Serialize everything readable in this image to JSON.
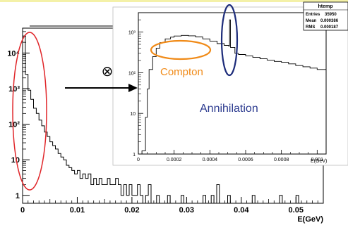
{
  "chart_data": [
    {
      "type": "histogram",
      "role": "main",
      "xlabel": "E(GeV)",
      "ylabel": "",
      "log_y": true,
      "xlim": [
        0,
        0.055
      ],
      "ylim": [
        0.6,
        50000
      ],
      "x_ticks": [
        {
          "value": 0,
          "label": "0"
        },
        {
          "value": 0.01,
          "label": "0.01"
        },
        {
          "value": 0.02,
          "label": "0.02"
        },
        {
          "value": 0.03,
          "label": "0.03"
        },
        {
          "value": 0.04,
          "label": "0.04"
        },
        {
          "value": 0.05,
          "label": "0.05"
        }
      ],
      "y_ticks": [
        {
          "value": 1,
          "label": "1"
        },
        {
          "value": 10,
          "label": "10"
        },
        {
          "value": 100,
          "label": "10²"
        },
        {
          "value": 1000,
          "label": "10³"
        },
        {
          "value": 10000,
          "label": "10⁴"
        }
      ],
      "bins": [
        {
          "x": 0.0,
          "y": 30000
        },
        {
          "x": 0.0005,
          "y": 2500
        },
        {
          "x": 0.001,
          "y": 900
        },
        {
          "x": 0.0015,
          "y": 500
        },
        {
          "x": 0.002,
          "y": 280
        },
        {
          "x": 0.0025,
          "y": 200
        },
        {
          "x": 0.003,
          "y": 130
        },
        {
          "x": 0.0035,
          "y": 90
        },
        {
          "x": 0.004,
          "y": 60
        },
        {
          "x": 0.0045,
          "y": 45
        },
        {
          "x": 0.005,
          "y": 32
        },
        {
          "x": 0.0055,
          "y": 25
        },
        {
          "x": 0.006,
          "y": 20
        },
        {
          "x": 0.0065,
          "y": 15
        },
        {
          "x": 0.007,
          "y": 12
        },
        {
          "x": 0.0075,
          "y": 10
        },
        {
          "x": 0.008,
          "y": 7
        },
        {
          "x": 0.0085,
          "y": 6
        },
        {
          "x": 0.009,
          "y": 5
        },
        {
          "x": 0.0095,
          "y": 4
        },
        {
          "x": 0.01,
          "y": 5
        },
        {
          "x": 0.0105,
          "y": 3
        },
        {
          "x": 0.011,
          "y": 4
        },
        {
          "x": 0.0115,
          "y": 3
        },
        {
          "x": 0.012,
          "y": 4
        },
        {
          "x": 0.0125,
          "y": 2
        },
        {
          "x": 0.013,
          "y": 3
        },
        {
          "x": 0.0135,
          "y": 2
        },
        {
          "x": 0.014,
          "y": 3
        },
        {
          "x": 0.0145,
          "y": 2
        },
        {
          "x": 0.015,
          "y": 2
        },
        {
          "x": 0.0155,
          "y": 3
        },
        {
          "x": 0.016,
          "y": 2
        },
        {
          "x": 0.0165,
          "y": 2
        },
        {
          "x": 0.017,
          "y": 3
        },
        {
          "x": 0.0175,
          "y": 2
        },
        {
          "x": 0.018,
          "y": 1
        },
        {
          "x": 0.0185,
          "y": 2
        },
        {
          "x": 0.019,
          "y": 1
        },
        {
          "x": 0.0195,
          "y": 2
        },
        {
          "x": 0.02,
          "y": 1
        },
        {
          "x": 0.0205,
          "y": 1
        },
        {
          "x": 0.021,
          "y": 2
        },
        {
          "x": 0.0215,
          "y": 1
        },
        {
          "x": 0.0225,
          "y": 1
        },
        {
          "x": 0.023,
          "y": 2
        },
        {
          "x": 0.0245,
          "y": 1
        },
        {
          "x": 0.0265,
          "y": 1
        },
        {
          "x": 0.029,
          "y": 1
        },
        {
          "x": 0.033,
          "y": 1
        },
        {
          "x": 0.0345,
          "y": 1
        },
        {
          "x": 0.0355,
          "y": 2
        },
        {
          "x": 0.0375,
          "y": 1
        },
        {
          "x": 0.042,
          "y": 1
        },
        {
          "x": 0.047,
          "y": 1
        },
        {
          "x": 0.05,
          "y": 1
        }
      ],
      "bin_width": 0.0005,
      "annotation_labels": [],
      "colors": {
        "ellipse": "#e0262a",
        "line": "#000000"
      }
    },
    {
      "type": "histogram",
      "role": "inset",
      "title": "",
      "xlabel": "E(GeV)",
      "ylabel": "",
      "log_y": true,
      "xlim": [
        0,
        0.00105
      ],
      "ylim": [
        1,
        3000
      ],
      "x_ticks": [
        {
          "value": 0,
          "label": "0"
        },
        {
          "value": 0.0002,
          "label": "0.0002"
        },
        {
          "value": 0.0004,
          "label": "0.0004"
        },
        {
          "value": 0.0006,
          "label": "0.0006"
        },
        {
          "value": 0.0008,
          "label": "0.0008"
        },
        {
          "value": 0.001,
          "label": "0.001"
        }
      ],
      "y_ticks": [
        {
          "value": 1,
          "label": "1"
        },
        {
          "value": 10,
          "label": "10"
        },
        {
          "value": 100,
          "label": "10²"
        },
        {
          "value": 1000,
          "label": "10³"
        }
      ],
      "curve": [
        [
          0.0,
          1
        ],
        [
          2e-05,
          1.2
        ],
        [
          4e-05,
          8
        ],
        [
          5e-05,
          40
        ],
        [
          6e-05,
          120
        ],
        [
          8e-05,
          250
        ],
        [
          0.0001,
          400
        ],
        [
          0.00012,
          550
        ],
        [
          0.00015,
          680
        ],
        [
          0.00018,
          750
        ],
        [
          0.0002,
          800
        ],
        [
          0.00024,
          830
        ],
        [
          0.00028,
          810
        ],
        [
          0.00032,
          760
        ],
        [
          0.00036,
          680
        ],
        [
          0.0004,
          600
        ],
        [
          0.00044,
          520
        ],
        [
          0.00048,
          470
        ],
        [
          0.000505,
          450
        ],
        [
          0.00051,
          2000
        ],
        [
          0.000515,
          420
        ],
        [
          0.00054,
          300
        ],
        [
          0.00056,
          280
        ],
        [
          0.0006,
          260
        ],
        [
          0.00064,
          240
        ],
        [
          0.00068,
          220
        ],
        [
          0.00072,
          205
        ],
        [
          0.00076,
          190
        ],
        [
          0.0008,
          180
        ],
        [
          0.00084,
          165
        ],
        [
          0.00088,
          150
        ],
        [
          0.00092,
          140
        ],
        [
          0.00096,
          130
        ],
        [
          0.001,
          120
        ]
      ],
      "stats": {
        "name": "htemp",
        "rows": [
          {
            "label": "Entries",
            "value": "35950"
          },
          {
            "label": "Mean",
            "value": "0.000386"
          },
          {
            "label": "RMS",
            "value": "0.000187"
          }
        ]
      },
      "annotations": [
        {
          "text": "Compton",
          "color": "#f08a17"
        },
        {
          "text": "Annihilation",
          "color": "#2b3a8f"
        }
      ],
      "colors": {
        "compton": "#f08a17",
        "annihilation": "#1d2c7a",
        "line": "#000000"
      }
    }
  ],
  "arrow": {
    "symbol": "⊗"
  }
}
